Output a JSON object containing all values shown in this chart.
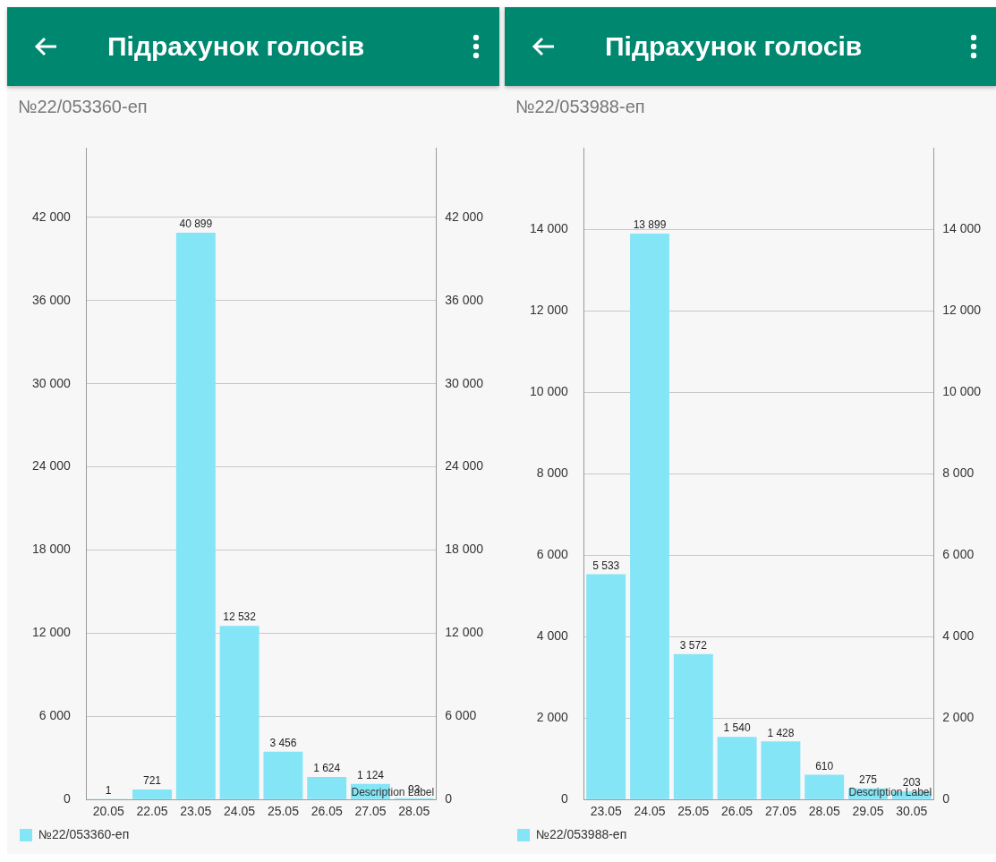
{
  "chart_data": [
    {
      "type": "bar",
      "title": "Підрахунок голосів",
      "subtitle": "№22/053360-еп",
      "categories": [
        "20.05",
        "22.05",
        "23.05",
        "24.05",
        "25.05",
        "26.05",
        "27.05",
        "28.05"
      ],
      "series": [
        {
          "name": "№22/053360-еп",
          "color": "#84e5f7",
          "values": [
            1,
            721,
            40899,
            12532,
            3456,
            1624,
            1124,
            93
          ]
        }
      ],
      "ylim": [
        0,
        47000
      ],
      "yticks": [
        0,
        6000,
        12000,
        18000,
        24000,
        30000,
        36000,
        42000
      ],
      "y2lim": [
        0,
        47000
      ],
      "y2ticks": [
        0,
        6000,
        12000,
        18000,
        24000,
        30000,
        36000,
        42000
      ],
      "data_labels": true,
      "grid": "y",
      "legend": "bottom left",
      "annotations": [
        "Description Label"
      ]
    },
    {
      "type": "bar",
      "title": "Підрахунок голосів",
      "subtitle": "№22/053988-еп",
      "categories": [
        "23.05",
        "24.05",
        "25.05",
        "26.05",
        "27.05",
        "28.05",
        "29.05",
        "30.05"
      ],
      "series": [
        {
          "name": "№22/053988-еп",
          "color": "#84e5f7",
          "values": [
            5533,
            13899,
            3572,
            1540,
            1428,
            610,
            275,
            203
          ]
        }
      ],
      "ylim": [
        0,
        16000
      ],
      "yticks": [
        0,
        2000,
        4000,
        6000,
        8000,
        10000,
        12000,
        14000
      ],
      "y2lim": [
        0,
        16000
      ],
      "y2ticks": [
        0,
        2000,
        4000,
        6000,
        8000,
        10000,
        12000,
        14000
      ],
      "data_labels": true,
      "grid": "y",
      "legend": "bottom left",
      "annotations": [
        "Description Label"
      ]
    }
  ]
}
